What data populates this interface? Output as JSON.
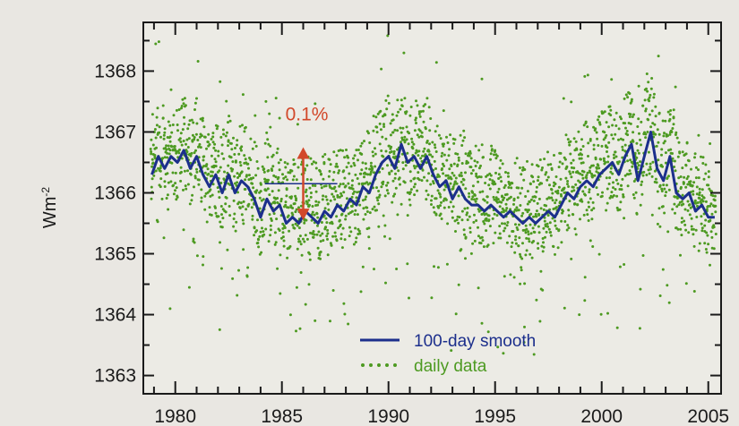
{
  "chart_data": {
    "type": "line",
    "title": "",
    "xlabel": "",
    "ylabel": "Wm",
    "ylabel_superscript": "-2",
    "xlim": [
      1978.5,
      2005.6
    ],
    "ylim": [
      1362.7,
      1368.8
    ],
    "x_ticks": [
      1980,
      1985,
      1990,
      1995,
      2000,
      2005
    ],
    "x_tick_labels": [
      "1980",
      "1985",
      "1990",
      "1995",
      "2000",
      "2005"
    ],
    "y_ticks": [
      1363,
      1364,
      1365,
      1366,
      1367,
      1368
    ],
    "y_tick_labels": [
      "1363",
      "1364",
      "1365",
      "1366",
      "1367",
      "1368"
    ],
    "grid": false,
    "legend_position": "bottom-center",
    "series": [
      {
        "name": "100-day smooth",
        "style": "solid",
        "color": "#1c2f8c",
        "x": [
          1978.9,
          1979.2,
          1979.5,
          1979.8,
          1980.1,
          1980.4,
          1980.7,
          1981.0,
          1981.3,
          1981.6,
          1981.9,
          1982.2,
          1982.5,
          1982.8,
          1983.1,
          1983.4,
          1983.7,
          1984.0,
          1984.3,
          1984.6,
          1984.9,
          1985.2,
          1985.5,
          1985.8,
          1986.1,
          1986.4,
          1986.7,
          1987.0,
          1987.3,
          1987.6,
          1987.9,
          1988.2,
          1988.5,
          1988.8,
          1989.1,
          1989.4,
          1989.7,
          1990.0,
          1990.3,
          1990.6,
          1990.9,
          1991.2,
          1991.5,
          1991.8,
          1992.1,
          1992.4,
          1992.7,
          1993.0,
          1993.3,
          1993.6,
          1993.9,
          1994.2,
          1994.5,
          1994.8,
          1995.1,
          1995.4,
          1995.7,
          1996.0,
          1996.3,
          1996.6,
          1996.9,
          1997.2,
          1997.5,
          1997.8,
          1998.1,
          1998.4,
          1998.7,
          1999.0,
          1999.3,
          1999.6,
          1999.9,
          2000.2,
          2000.5,
          2000.8,
          2001.1,
          2001.4,
          2001.7,
          2002.0,
          2002.3,
          2002.6,
          2002.9,
          2003.2,
          2003.5,
          2003.8,
          2004.1,
          2004.4,
          2004.7,
          2005.0,
          2005.3
        ],
        "y": [
          1366.3,
          1366.6,
          1366.4,
          1366.6,
          1366.5,
          1366.7,
          1366.4,
          1366.6,
          1366.3,
          1366.1,
          1366.3,
          1366.0,
          1366.3,
          1366.0,
          1366.2,
          1366.1,
          1365.9,
          1365.6,
          1365.9,
          1365.7,
          1365.8,
          1365.5,
          1365.6,
          1365.5,
          1365.7,
          1365.6,
          1365.5,
          1365.7,
          1365.6,
          1365.8,
          1365.7,
          1365.9,
          1365.8,
          1366.1,
          1366.0,
          1366.3,
          1366.5,
          1366.6,
          1366.4,
          1366.8,
          1366.5,
          1366.6,
          1366.4,
          1366.6,
          1366.3,
          1366.1,
          1366.2,
          1365.9,
          1366.1,
          1365.9,
          1365.8,
          1365.8,
          1365.7,
          1365.8,
          1365.7,
          1365.6,
          1365.7,
          1365.6,
          1365.5,
          1365.6,
          1365.5,
          1365.6,
          1365.7,
          1365.6,
          1365.8,
          1366.0,
          1365.9,
          1366.1,
          1366.2,
          1366.1,
          1366.3,
          1366.4,
          1366.5,
          1366.3,
          1366.6,
          1366.8,
          1366.2,
          1366.6,
          1367.0,
          1366.4,
          1366.2,
          1366.6,
          1366.0,
          1365.9,
          1366.0,
          1365.7,
          1365.8,
          1365.6,
          1365.6
        ]
      },
      {
        "name": "daily data",
        "style": "dotted",
        "color": "#4d9a21",
        "scatter_around_smooth": true,
        "typical_spread": 0.55
      }
    ],
    "annotations": [
      {
        "text": "0.1%",
        "color": "#d2482a",
        "x": 1986.0,
        "y_top": 1366.75,
        "y_bottom": 1365.55,
        "reference_line": {
          "y": 1366.15,
          "x_from": 1984.2,
          "x_to": 1987.6
        }
      }
    ]
  }
}
